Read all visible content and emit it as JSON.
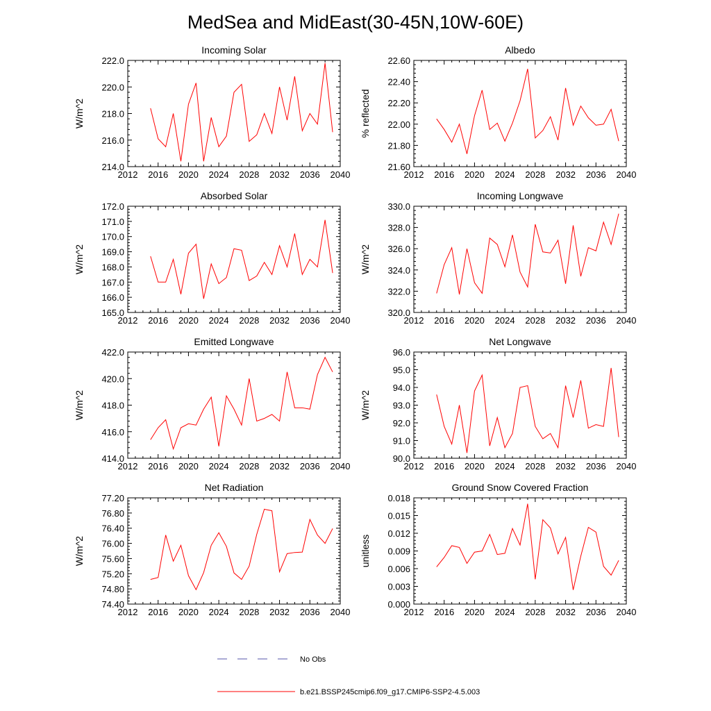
{
  "title": "MedSea and MidEast(30-45N,10W-60E)",
  "series_color": "#ff0000",
  "obs_color": "#5555aa",
  "legend": {
    "obs_label": "No Obs",
    "model_label": "b.e21.BSSP245cmip6.f09_g17.CMIP6-SSP2-4.5.003"
  },
  "chart_data": [
    {
      "type": "line",
      "title": "Incoming Solar",
      "ylabel": "W/m^2",
      "xlim": [
        2012,
        2040
      ],
      "ylim": [
        214.0,
        222.0
      ],
      "xticks": [
        2012,
        2016,
        2020,
        2024,
        2028,
        2032,
        2036,
        2040
      ],
      "yticks": [
        "214.0",
        "216.0",
        "218.0",
        "220.0",
        "222.0"
      ],
      "x": [
        2015,
        2016,
        2017,
        2018,
        2019,
        2020,
        2021,
        2022,
        2023,
        2024,
        2025,
        2026,
        2027,
        2028,
        2029,
        2030,
        2031,
        2032,
        2033,
        2034,
        2035,
        2036,
        2037,
        2038,
        2039
      ],
      "series": [
        {
          "name": "b.e21.BSSP245cmip6.f09_g17.CMIP6-SSP2-4.5.003",
          "values": [
            218.4,
            216.1,
            215.5,
            218.0,
            214.4,
            218.7,
            220.3,
            214.4,
            217.7,
            215.5,
            216.3,
            219.6,
            220.2,
            215.9,
            216.4,
            218.0,
            216.5,
            220.0,
            217.5,
            220.8,
            216.7,
            218.0,
            217.2,
            221.8,
            216.6
          ]
        }
      ]
    },
    {
      "type": "line",
      "title": "Albedo",
      "ylabel": "% reflected",
      "xlim": [
        2012,
        2040
      ],
      "ylim": [
        21.6,
        22.6
      ],
      "xticks": [
        2012,
        2016,
        2020,
        2024,
        2028,
        2032,
        2036,
        2040
      ],
      "yticks": [
        "21.60",
        "21.80",
        "22.00",
        "22.20",
        "22.40",
        "22.60"
      ],
      "x": [
        2015,
        2016,
        2017,
        2018,
        2019,
        2020,
        2021,
        2022,
        2023,
        2024,
        2025,
        2026,
        2027,
        2028,
        2029,
        2030,
        2031,
        2032,
        2033,
        2034,
        2035,
        2036,
        2037,
        2038,
        2039
      ],
      "series": [
        {
          "name": "b.e21.BSSP245cmip6.f09_g17.CMIP6-SSP2-4.5.003",
          "values": [
            22.05,
            21.95,
            21.83,
            22.0,
            21.72,
            22.08,
            22.32,
            21.95,
            22.01,
            21.84,
            22.01,
            22.22,
            22.52,
            21.87,
            21.94,
            22.07,
            21.85,
            22.34,
            21.99,
            22.17,
            22.06,
            21.99,
            22.0,
            22.14,
            21.84
          ]
        }
      ]
    },
    {
      "type": "line",
      "title": "Absorbed Solar",
      "ylabel": "W/m^2",
      "xlim": [
        2012,
        2040
      ],
      "ylim": [
        165.0,
        172.0
      ],
      "xticks": [
        2012,
        2016,
        2020,
        2024,
        2028,
        2032,
        2036,
        2040
      ],
      "yticks": [
        "165.0",
        "166.0",
        "167.0",
        "168.0",
        "169.0",
        "170.0",
        "171.0",
        "172.0"
      ],
      "x": [
        2015,
        2016,
        2017,
        2018,
        2019,
        2020,
        2021,
        2022,
        2023,
        2024,
        2025,
        2026,
        2027,
        2028,
        2029,
        2030,
        2031,
        2032,
        2033,
        2034,
        2035,
        2036,
        2037,
        2038,
        2039
      ],
      "series": [
        {
          "name": "b.e21.BSSP245cmip6.f09_g17.CMIP6-SSP2-4.5.003",
          "values": [
            168.7,
            167.0,
            167.0,
            168.5,
            166.2,
            168.9,
            169.5,
            165.9,
            168.2,
            166.9,
            167.3,
            169.2,
            169.1,
            167.1,
            167.4,
            168.3,
            167.5,
            169.4,
            168.0,
            170.2,
            167.5,
            168.5,
            168.0,
            171.1,
            167.6
          ]
        }
      ]
    },
    {
      "type": "line",
      "title": "Incoming Longwave",
      "ylabel": "W/m^2",
      "xlim": [
        2012,
        2040
      ],
      "ylim": [
        320.0,
        330.0
      ],
      "xticks": [
        2012,
        2016,
        2020,
        2024,
        2028,
        2032,
        2036,
        2040
      ],
      "yticks": [
        "320.0",
        "322.0",
        "324.0",
        "326.0",
        "328.0",
        "330.0"
      ],
      "x": [
        2015,
        2016,
        2017,
        2018,
        2019,
        2020,
        2021,
        2022,
        2023,
        2024,
        2025,
        2026,
        2027,
        2028,
        2029,
        2030,
        2031,
        2032,
        2033,
        2034,
        2035,
        2036,
        2037,
        2038,
        2039
      ],
      "series": [
        {
          "name": "b.e21.BSSP245cmip6.f09_g17.CMIP6-SSP2-4.5.003",
          "values": [
            321.8,
            324.5,
            326.1,
            321.7,
            326.0,
            322.8,
            321.8,
            327.0,
            326.4,
            324.3,
            327.3,
            323.8,
            322.4,
            328.3,
            325.7,
            325.6,
            326.8,
            322.7,
            328.2,
            323.4,
            326.1,
            325.8,
            328.5,
            326.4,
            329.3
          ]
        }
      ]
    },
    {
      "type": "line",
      "title": "Emitted Longwave",
      "ylabel": "W/m^2",
      "xlim": [
        2012,
        2040
      ],
      "ylim": [
        414.0,
        422.0
      ],
      "xticks": [
        2012,
        2016,
        2020,
        2024,
        2028,
        2032,
        2036,
        2040
      ],
      "yticks": [
        "414.0",
        "416.0",
        "418.0",
        "420.0",
        "422.0"
      ],
      "x": [
        2015,
        2016,
        2017,
        2018,
        2019,
        2020,
        2021,
        2022,
        2023,
        2024,
        2025,
        2026,
        2027,
        2028,
        2029,
        2030,
        2031,
        2032,
        2033,
        2034,
        2035,
        2036,
        2037,
        2038,
        2039
      ],
      "series": [
        {
          "name": "b.e21.BSSP245cmip6.f09_g17.CMIP6-SSP2-4.5.003",
          "values": [
            415.4,
            416.3,
            416.9,
            414.7,
            416.3,
            416.6,
            416.5,
            417.7,
            418.6,
            414.9,
            418.7,
            417.7,
            416.5,
            420.0,
            416.8,
            417.0,
            417.3,
            416.8,
            420.5,
            417.8,
            417.8,
            417.7,
            420.3,
            421.6,
            420.5
          ]
        }
      ]
    },
    {
      "type": "line",
      "title": "Net Longwave",
      "ylabel": "W/m^2",
      "xlim": [
        2012,
        2040
      ],
      "ylim": [
        90.0,
        96.0
      ],
      "xticks": [
        2012,
        2016,
        2020,
        2024,
        2028,
        2032,
        2036,
        2040
      ],
      "yticks": [
        "90.0",
        "91.0",
        "92.0",
        "93.0",
        "94.0",
        "95.0",
        "96.0"
      ],
      "x": [
        2015,
        2016,
        2017,
        2018,
        2019,
        2020,
        2021,
        2022,
        2023,
        2024,
        2025,
        2026,
        2027,
        2028,
        2029,
        2030,
        2031,
        2032,
        2033,
        2034,
        2035,
        2036,
        2037,
        2038,
        2039
      ],
      "series": [
        {
          "name": "b.e21.BSSP245cmip6.f09_g17.CMIP6-SSP2-4.5.003",
          "values": [
            93.6,
            91.8,
            90.8,
            93.0,
            90.3,
            93.8,
            94.7,
            90.7,
            92.3,
            90.6,
            91.4,
            94.0,
            94.1,
            91.8,
            91.1,
            91.4,
            90.6,
            94.1,
            92.3,
            94.4,
            91.7,
            91.9,
            91.8,
            95.1,
            91.2
          ]
        }
      ]
    },
    {
      "type": "line",
      "title": "Net Radiation",
      "ylabel": "W/m^2",
      "xlim": [
        2012,
        2040
      ],
      "ylim": [
        74.4,
        77.2
      ],
      "xticks": [
        2012,
        2016,
        2020,
        2024,
        2028,
        2032,
        2036,
        2040
      ],
      "yticks": [
        "74.40",
        "74.80",
        "75.20",
        "75.60",
        "76.00",
        "76.40",
        "76.80",
        "77.20"
      ],
      "x": [
        2015,
        2016,
        2017,
        2018,
        2019,
        2020,
        2021,
        2022,
        2023,
        2024,
        2025,
        2026,
        2027,
        2028,
        2029,
        2030,
        2031,
        2032,
        2033,
        2034,
        2035,
        2036,
        2037,
        2038,
        2039
      ],
      "series": [
        {
          "name": "b.e21.BSSP245cmip6.f09_g17.CMIP6-SSP2-4.5.003",
          "values": [
            75.05,
            75.1,
            76.22,
            75.53,
            75.95,
            75.15,
            74.78,
            75.23,
            75.95,
            76.28,
            75.92,
            75.22,
            75.05,
            75.4,
            76.24,
            76.9,
            76.86,
            75.25,
            75.73,
            75.76,
            75.77,
            76.63,
            76.22,
            76.0,
            76.39
          ]
        }
      ]
    },
    {
      "type": "line",
      "title": "Ground Snow Covered Fraction",
      "ylabel": "unitless",
      "xlim": [
        2012,
        2040
      ],
      "ylim": [
        0.0,
        0.018
      ],
      "xticks": [
        2012,
        2016,
        2020,
        2024,
        2028,
        2032,
        2036,
        2040
      ],
      "yticks": [
        "0.000",
        "0.003",
        "0.006",
        "0.009",
        "0.012",
        "0.015",
        "0.018"
      ],
      "x": [
        2015,
        2016,
        2017,
        2018,
        2019,
        2020,
        2021,
        2022,
        2023,
        2024,
        2025,
        2026,
        2027,
        2028,
        2029,
        2030,
        2031,
        2032,
        2033,
        2034,
        2035,
        2036,
        2037,
        2038,
        2039
      ],
      "series": [
        {
          "name": "b.e21.BSSP245cmip6.f09_g17.CMIP6-SSP2-4.5.003",
          "values": [
            0.0063,
            0.0079,
            0.0099,
            0.0096,
            0.0069,
            0.0088,
            0.009,
            0.0118,
            0.0084,
            0.0086,
            0.0128,
            0.01,
            0.017,
            0.0042,
            0.0143,
            0.0129,
            0.0085,
            0.0113,
            0.0024,
            0.0081,
            0.013,
            0.0122,
            0.0064,
            0.0049,
            0.0074
          ]
        }
      ]
    }
  ]
}
